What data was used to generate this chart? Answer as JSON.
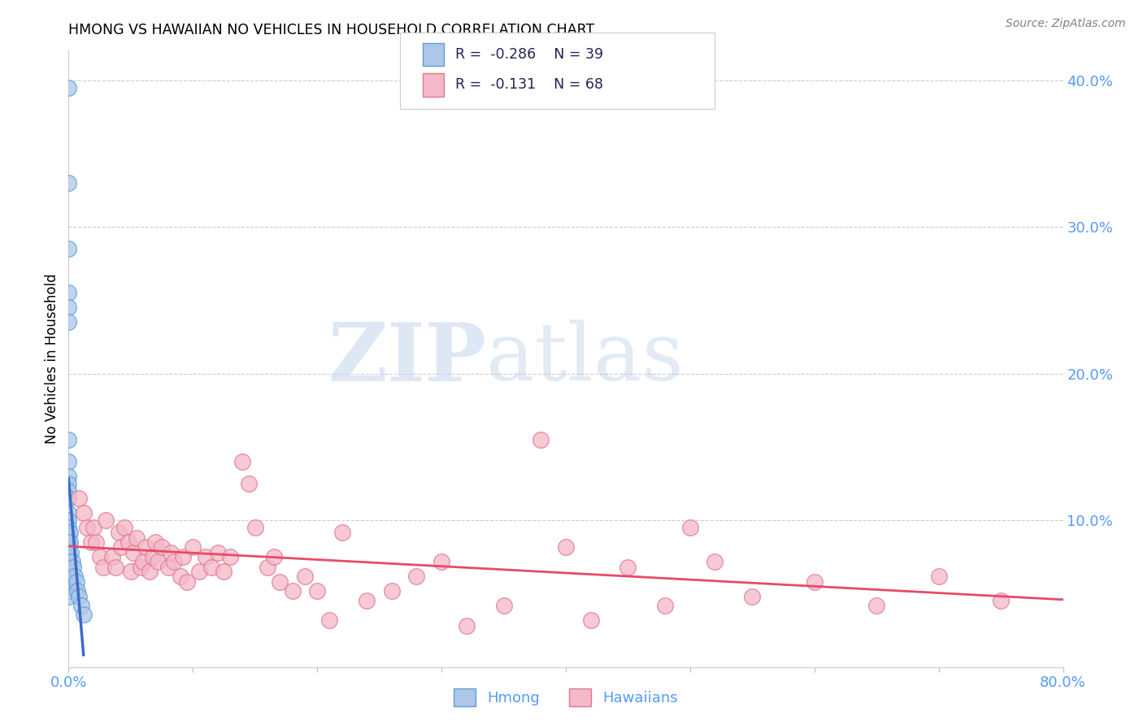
{
  "title": "HMONG VS HAWAIIAN NO VEHICLES IN HOUSEHOLD CORRELATION CHART",
  "source": "Source: ZipAtlas.com",
  "ylabel": "No Vehicles in Household",
  "xlim": [
    0.0,
    0.8
  ],
  "ylim": [
    0.0,
    0.42
  ],
  "hmong_color": "#aec6e8",
  "hmong_edge_color": "#5a9fd4",
  "hawaiian_color": "#f4b8c8",
  "hawaiian_edge_color": "#e0788e",
  "trendline_hmong_color": "#3b6bc9",
  "trendline_hawaiian_color": "#e8496a",
  "legend_label_hmong": "Hmong",
  "legend_label_hawaiian": "Hawaiians",
  "R_hmong": -0.286,
  "N_hmong": 39,
  "R_hawaiian": -0.131,
  "N_hawaiian": 68,
  "watermark_zip": "ZIP",
  "watermark_atlas": "atlas",
  "hmong_x": [
    0.0,
    0.0,
    0.0,
    0.0,
    0.0,
    0.0,
    0.0,
    0.0,
    0.0,
    0.0,
    0.0,
    0.0,
    0.0,
    0.0,
    0.0,
    0.0,
    0.0,
    0.0,
    0.0,
    0.0,
    0.0,
    0.0,
    0.0,
    0.0,
    0.0,
    0.0,
    0.0,
    0.0,
    0.001,
    0.001,
    0.002,
    0.003,
    0.004,
    0.005,
    0.006,
    0.007,
    0.008,
    0.01,
    0.012
  ],
  "hmong_y": [
    0.395,
    0.33,
    0.285,
    0.255,
    0.245,
    0.235,
    0.155,
    0.14,
    0.13,
    0.125,
    0.12,
    0.115,
    0.105,
    0.1,
    0.095,
    0.09,
    0.085,
    0.082,
    0.078,
    0.075,
    0.072,
    0.068,
    0.065,
    0.062,
    0.058,
    0.055,
    0.052,
    0.048,
    0.092,
    0.085,
    0.078,
    0.072,
    0.068,
    0.062,
    0.058,
    0.052,
    0.048,
    0.042,
    0.036
  ],
  "hawaiian_x": [
    0.008,
    0.012,
    0.015,
    0.018,
    0.02,
    0.022,
    0.025,
    0.028,
    0.03,
    0.035,
    0.038,
    0.04,
    0.042,
    0.045,
    0.048,
    0.05,
    0.052,
    0.055,
    0.058,
    0.06,
    0.062,
    0.065,
    0.068,
    0.07,
    0.072,
    0.075,
    0.08,
    0.082,
    0.085,
    0.09,
    0.092,
    0.095,
    0.1,
    0.105,
    0.11,
    0.115,
    0.12,
    0.125,
    0.13,
    0.14,
    0.145,
    0.15,
    0.16,
    0.165,
    0.17,
    0.18,
    0.19,
    0.2,
    0.21,
    0.22,
    0.24,
    0.26,
    0.28,
    0.3,
    0.32,
    0.35,
    0.38,
    0.4,
    0.42,
    0.45,
    0.48,
    0.5,
    0.52,
    0.55,
    0.6,
    0.65,
    0.7,
    0.75
  ],
  "hawaiian_y": [
    0.115,
    0.105,
    0.095,
    0.085,
    0.095,
    0.085,
    0.075,
    0.068,
    0.1,
    0.075,
    0.068,
    0.092,
    0.082,
    0.095,
    0.085,
    0.065,
    0.078,
    0.088,
    0.068,
    0.072,
    0.082,
    0.065,
    0.075,
    0.085,
    0.072,
    0.082,
    0.068,
    0.078,
    0.072,
    0.062,
    0.075,
    0.058,
    0.082,
    0.065,
    0.075,
    0.068,
    0.078,
    0.065,
    0.075,
    0.14,
    0.125,
    0.095,
    0.068,
    0.075,
    0.058,
    0.052,
    0.062,
    0.052,
    0.032,
    0.092,
    0.045,
    0.052,
    0.062,
    0.072,
    0.028,
    0.042,
    0.155,
    0.082,
    0.032,
    0.068,
    0.042,
    0.095,
    0.072,
    0.048,
    0.058,
    0.042,
    0.062,
    0.045
  ]
}
